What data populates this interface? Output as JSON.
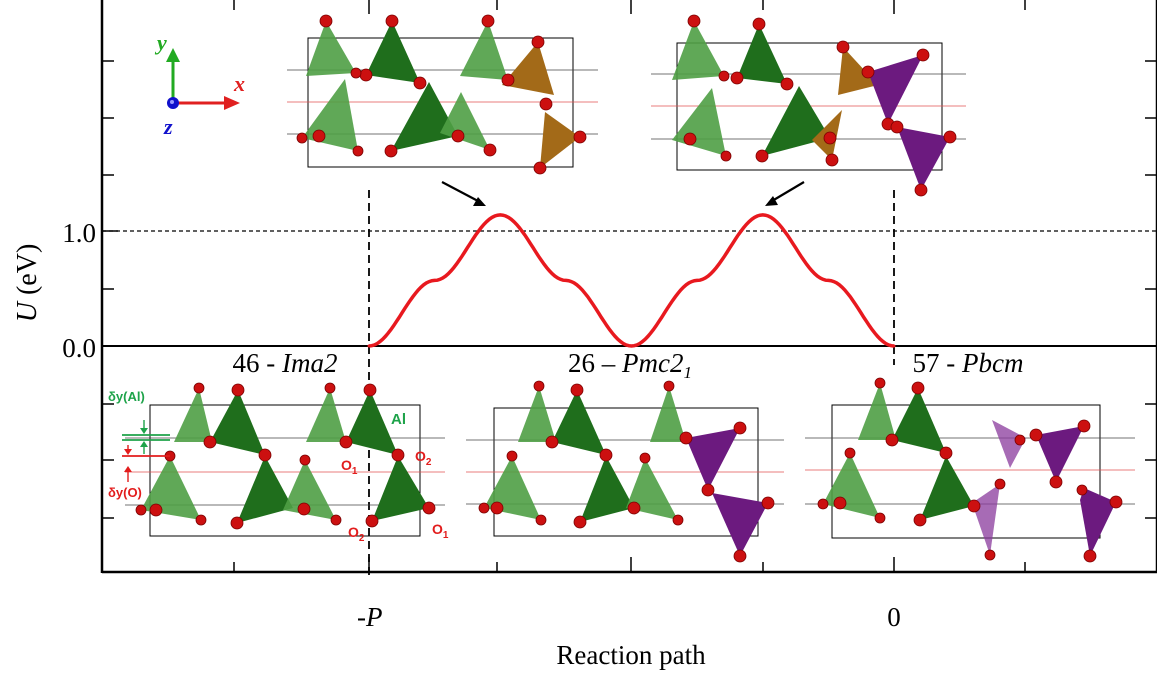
{
  "chart_data": {
    "type": "line",
    "xlabel": "Reaction path",
    "ylabel_symbol": "U",
    "ylabel_unit": "(eV)",
    "xticks": [
      {
        "x": -1.0,
        "label_prefix": "-",
        "label_italic": "P"
      },
      {
        "x": 0.0,
        "label_prefix": "0",
        "label_italic": ""
      }
    ],
    "yticks": [
      {
        "y": 0.0,
        "label": "0.0"
      },
      {
        "y": 1.0,
        "label": "1.0"
      }
    ],
    "xlim": [
      -2.03,
      0.91
    ],
    "ylim_upper_panel": [
      0.0,
      2.12
    ],
    "reference_lines": {
      "y": 1.0,
      "x": [
        -1.0,
        0.0
      ]
    },
    "series": [
      {
        "color": "#e8191f",
        "x": [
          -1.0,
          -0.875,
          -0.75,
          -0.625,
          -0.5,
          -0.375,
          -0.25,
          -0.125,
          0.0
        ],
        "y": [
          0.0,
          0.57,
          1.14,
          0.57,
          0.0,
          0.57,
          1.14,
          0.57,
          0.0
        ]
      }
    ],
    "phase_labels": [
      {
        "number": "46 - ",
        "name": "Ima2",
        "sub": ""
      },
      {
        "number": "26 – ",
        "name": "Pmc2",
        "sub": "1"
      },
      {
        "number": "57 - ",
        "name": "Pbcm",
        "sub": ""
      }
    ],
    "axes_triad": {
      "x": "x",
      "y": "y",
      "z": "z"
    },
    "structure_annotations": {
      "dy_al": "δy(Al)",
      "dy_o": "δy(O)",
      "al": "Al",
      "o1": "O",
      "o1_sub": "1",
      "o2": "O",
      "o2_sub": "2"
    },
    "colors": {
      "curve": "#e8191f",
      "tetra_light": "#4f9e45",
      "tetra_dark": "#1f6e1c",
      "tetra_brown": "#a36a18",
      "tetra_purple": "#6c1a7f",
      "oxygen": "#cc1010",
      "axis_x": "#e02020",
      "axis_y": "#22aa22",
      "axis_z": "#1111cc",
      "annotation_green": "#1ea34a",
      "annotation_red": "#e21c1c"
    }
  }
}
